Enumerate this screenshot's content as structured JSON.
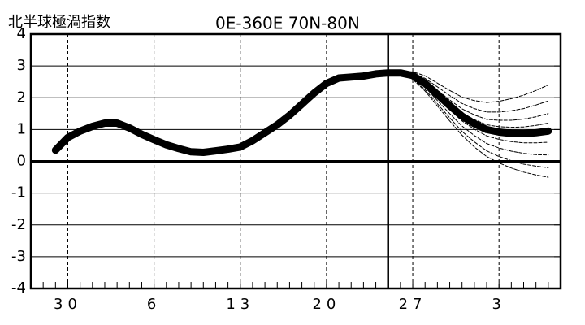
{
  "chart_data": {
    "type": "line",
    "title": "北半球極渦指数",
    "subtitle": "0E-360E  70N-80N",
    "categories": [
      null,
      null,
      null,
      "30",
      null,
      null,
      null,
      null,
      null,
      null,
      "6",
      null,
      null,
      null,
      null,
      null,
      null,
      "13",
      null,
      null,
      null,
      null,
      null,
      null,
      "20",
      null,
      null,
      null,
      null,
      null,
      null,
      "27",
      null,
      null,
      null,
      null,
      null,
      null,
      "3",
      null,
      null,
      null,
      null,
      null
    ],
    "ylim": [
      -4,
      4
    ],
    "yticks": [
      -4,
      -3,
      -2,
      -1,
      0,
      1,
      2,
      3,
      4
    ],
    "grid": true,
    "vline": 29,
    "series": [
      {
        "color": "#000000",
        "style": "solid",
        "values": [
          null,
          null,
          0.35,
          0.75,
          0.95,
          1.1,
          1.2,
          1.2,
          1.05,
          0.85,
          0.68,
          0.52,
          0.4,
          0.3,
          0.28,
          0.33,
          0.38,
          0.45,
          0.65,
          0.9,
          1.15,
          1.45,
          1.8,
          2.15,
          2.45,
          2.62,
          2.65,
          2.68,
          2.75,
          2.78,
          2.78,
          2.7,
          2.45,
          2.1,
          1.75,
          1.42,
          1.18,
          1.0,
          0.92,
          0.88,
          0.87,
          0.9,
          0.95,
          null
        ]
      },
      {
        "color": "#000000",
        "style": "dashed",
        "values": [
          null,
          null,
          null,
          null,
          null,
          null,
          null,
          null,
          null,
          null,
          null,
          null,
          null,
          null,
          null,
          null,
          null,
          null,
          null,
          null,
          null,
          null,
          null,
          null,
          null,
          null,
          null,
          null,
          null,
          null,
          2.78,
          2.82,
          2.69,
          2.46,
          2.23,
          2.02,
          1.91,
          1.85,
          1.89,
          1.97,
          2.08,
          2.23,
          2.4,
          null
        ]
      },
      {
        "color": "#000000",
        "style": "dashed",
        "values": [
          null,
          null,
          null,
          null,
          null,
          null,
          null,
          null,
          null,
          null,
          null,
          null,
          null,
          null,
          null,
          null,
          null,
          null,
          null,
          null,
          null,
          null,
          null,
          null,
          null,
          null,
          null,
          null,
          null,
          null,
          2.78,
          2.78,
          2.61,
          2.34,
          2.07,
          1.82,
          1.66,
          1.55,
          1.55,
          1.59,
          1.66,
          1.77,
          1.9,
          null
        ]
      },
      {
        "color": "#000000",
        "style": "dashed",
        "values": [
          null,
          null,
          null,
          null,
          null,
          null,
          null,
          null,
          null,
          null,
          null,
          null,
          null,
          null,
          null,
          null,
          null,
          null,
          null,
          null,
          null,
          null,
          null,
          null,
          null,
          null,
          null,
          null,
          null,
          null,
          2.78,
          2.75,
          2.54,
          2.24,
          1.93,
          1.65,
          1.46,
          1.32,
          1.29,
          1.29,
          1.33,
          1.4,
          1.5,
          null
        ]
      },
      {
        "color": "#000000",
        "style": "dashed",
        "values": [
          null,
          null,
          null,
          null,
          null,
          null,
          null,
          null,
          null,
          null,
          null,
          null,
          null,
          null,
          null,
          null,
          null,
          null,
          null,
          null,
          null,
          null,
          null,
          null,
          null,
          null,
          null,
          null,
          null,
          null,
          2.78,
          2.72,
          2.49,
          2.16,
          1.83,
          1.52,
          1.31,
          1.15,
          1.09,
          1.07,
          1.08,
          1.13,
          1.2,
          null
        ]
      },
      {
        "color": "#000000",
        "style": "dashed",
        "values": [
          null,
          null,
          null,
          null,
          null,
          null,
          null,
          null,
          null,
          null,
          null,
          null,
          null,
          null,
          null,
          null,
          null,
          null,
          null,
          null,
          null,
          null,
          null,
          null,
          null,
          null,
          null,
          null,
          null,
          null,
          2.78,
          2.67,
          2.39,
          2.01,
          1.63,
          1.27,
          1.01,
          0.8,
          0.69,
          0.62,
          0.58,
          0.58,
          0.6,
          null
        ]
      },
      {
        "color": "#000000",
        "style": "dashed",
        "values": [
          null,
          null,
          null,
          null,
          null,
          null,
          null,
          null,
          null,
          null,
          null,
          null,
          null,
          null,
          null,
          null,
          null,
          null,
          null,
          null,
          null,
          null,
          null,
          null,
          null,
          null,
          null,
          null,
          null,
          null,
          2.78,
          2.64,
          2.33,
          1.91,
          1.5,
          1.11,
          0.81,
          0.56,
          0.42,
          0.32,
          0.25,
          0.21,
          0.2,
          null
        ]
      },
      {
        "color": "#000000",
        "style": "dashed",
        "values": [
          null,
          null,
          null,
          null,
          null,
          null,
          null,
          null,
          null,
          null,
          null,
          null,
          null,
          null,
          null,
          null,
          null,
          null,
          null,
          null,
          null,
          null,
          null,
          null,
          null,
          null,
          null,
          null,
          null,
          null,
          2.78,
          2.6,
          2.26,
          1.81,
          1.37,
          0.94,
          0.61,
          0.33,
          0.15,
          0.02,
          -0.09,
          -0.15,
          -0.2,
          null
        ]
      },
      {
        "color": "#000000",
        "style": "dashed",
        "values": [
          null,
          null,
          null,
          null,
          null,
          null,
          null,
          null,
          null,
          null,
          null,
          null,
          null,
          null,
          null,
          null,
          null,
          null,
          null,
          null,
          null,
          null,
          null,
          null,
          null,
          null,
          null,
          null,
          null,
          null,
          2.78,
          2.58,
          2.21,
          1.74,
          1.27,
          0.82,
          0.45,
          0.15,
          -0.05,
          -0.21,
          -0.34,
          -0.43,
          -0.5,
          null
        ]
      }
    ]
  }
}
